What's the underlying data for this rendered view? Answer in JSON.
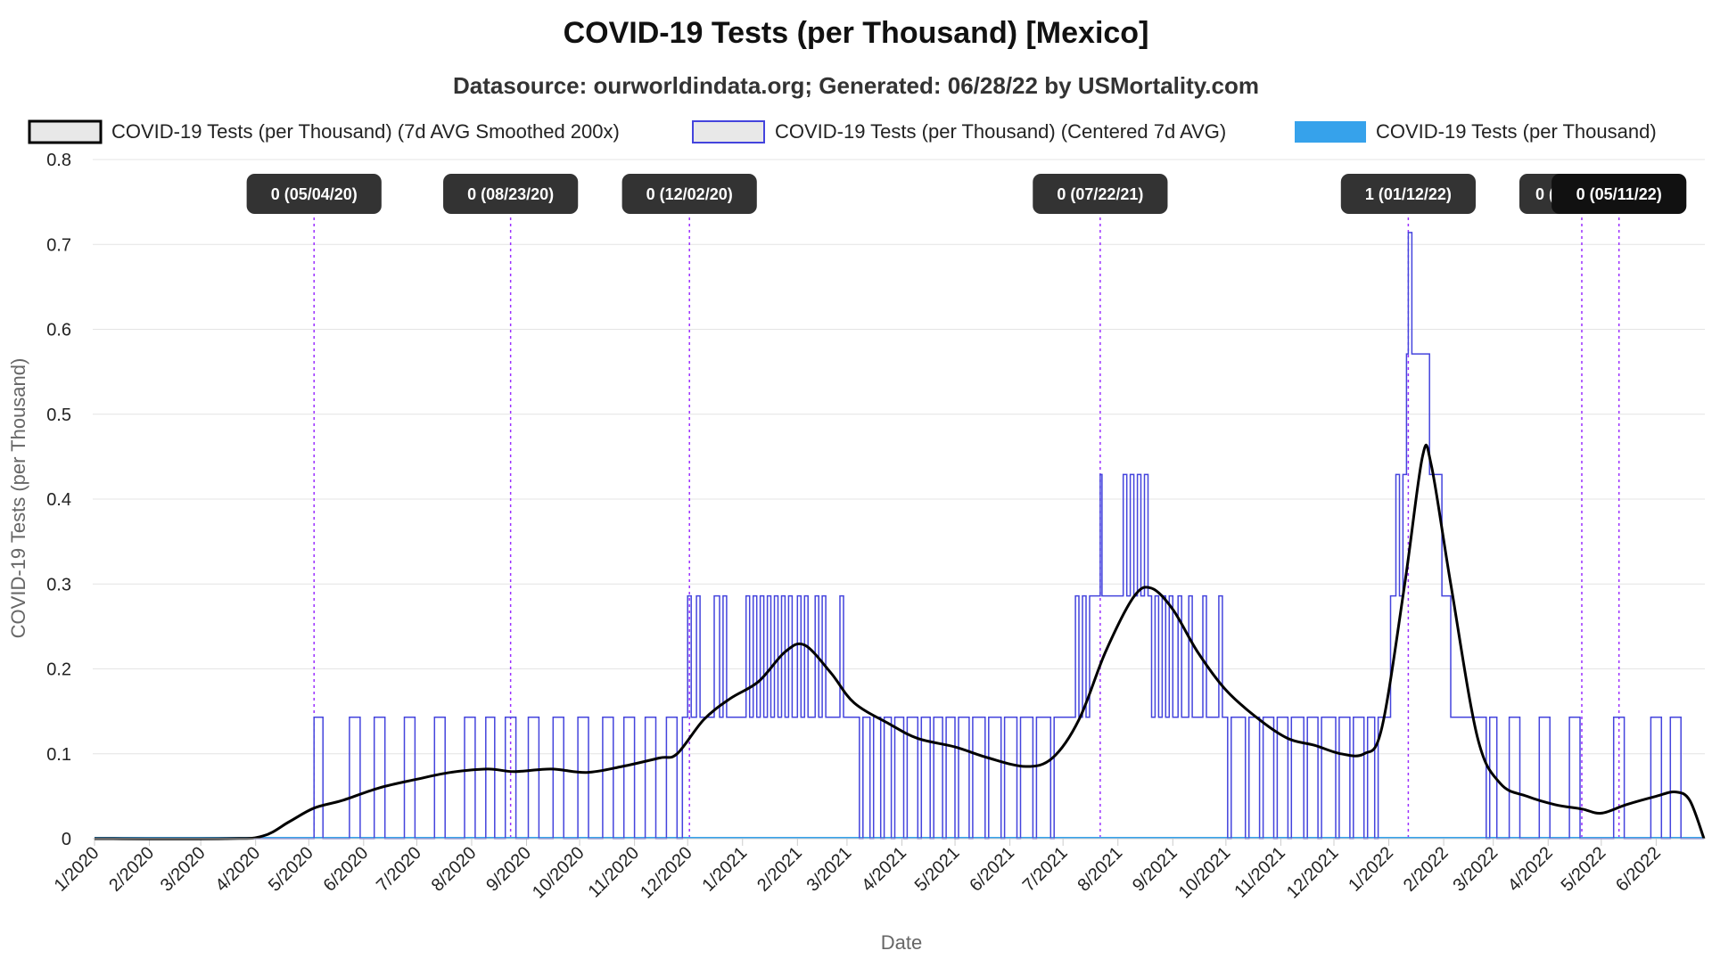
{
  "chart_data": {
    "type": "line",
    "title": "COVID-19 Tests (per Thousand) [Mexico]",
    "subtitle": "Datasource: ourworldindata.org; Generated: 06/28/22 by USMortality.com",
    "xlabel": "Date",
    "ylabel": "COVID-19 Tests (per Thousand)",
    "ylim": [
      0,
      0.8
    ],
    "yticks": [
      "0",
      "0.1",
      "0.2",
      "0.3",
      "0.4",
      "0.5",
      "0.6",
      "0.7",
      "0.8"
    ],
    "xticks": [
      "1/2020",
      "2/2020",
      "3/2020",
      "4/2020",
      "5/2020",
      "6/2020",
      "7/2020",
      "8/2020",
      "9/2020",
      "10/2020",
      "11/2020",
      "12/2020",
      "1/2021",
      "2/2021",
      "3/2021",
      "4/2021",
      "5/2021",
      "6/2021",
      "7/2021",
      "8/2021",
      "9/2021",
      "10/2021",
      "11/2021",
      "12/2021",
      "1/2022",
      "2/2022",
      "3/2022",
      "4/2022",
      "5/2022",
      "6/2022"
    ],
    "grid": true,
    "legend_position": "top",
    "series": [
      {
        "name": "COVID-19 Tests (per Thousand) (7d AVG Smoothed 200x)",
        "style": "smooth",
        "color": "#000000",
        "points": [
          [
            "2020-01-01",
            0
          ],
          [
            "2020-03-15",
            0
          ],
          [
            "2020-04-05",
            0.003
          ],
          [
            "2020-04-20",
            0.02
          ],
          [
            "2020-05-04",
            0.036
          ],
          [
            "2020-05-20",
            0.045
          ],
          [
            "2020-06-10",
            0.06
          ],
          [
            "2020-07-01",
            0.07
          ],
          [
            "2020-07-20",
            0.078
          ],
          [
            "2020-08-10",
            0.082
          ],
          [
            "2020-08-25",
            0.079
          ],
          [
            "2020-09-15",
            0.082
          ],
          [
            "2020-10-05",
            0.078
          ],
          [
            "2020-10-25",
            0.085
          ],
          [
            "2020-11-15",
            0.095
          ],
          [
            "2020-11-25",
            0.1
          ],
          [
            "2020-12-10",
            0.14
          ],
          [
            "2020-12-25",
            0.165
          ],
          [
            "2021-01-10",
            0.185
          ],
          [
            "2021-01-25",
            0.22
          ],
          [
            "2021-02-05",
            0.228
          ],
          [
            "2021-02-20",
            0.195
          ],
          [
            "2021-03-05",
            0.16
          ],
          [
            "2021-03-25",
            0.135
          ],
          [
            "2021-04-10",
            0.118
          ],
          [
            "2021-05-01",
            0.108
          ],
          [
            "2021-05-20",
            0.095
          ],
          [
            "2021-06-10",
            0.085
          ],
          [
            "2021-06-25",
            0.095
          ],
          [
            "2021-07-10",
            0.14
          ],
          [
            "2021-07-25",
            0.22
          ],
          [
            "2021-08-10",
            0.285
          ],
          [
            "2021-08-20",
            0.295
          ],
          [
            "2021-09-01",
            0.27
          ],
          [
            "2021-09-15",
            0.22
          ],
          [
            "2021-10-01",
            0.175
          ],
          [
            "2021-10-20",
            0.14
          ],
          [
            "2021-11-05",
            0.118
          ],
          [
            "2021-11-20",
            0.11
          ],
          [
            "2021-12-05",
            0.1
          ],
          [
            "2021-12-18",
            0.1
          ],
          [
            "2021-12-28",
            0.13
          ],
          [
            "2022-01-10",
            0.3
          ],
          [
            "2022-01-20",
            0.45
          ],
          [
            "2022-01-25",
            0.44
          ],
          [
            "2022-02-05",
            0.3
          ],
          [
            "2022-02-20",
            0.12
          ],
          [
            "2022-03-05",
            0.065
          ],
          [
            "2022-03-20",
            0.05
          ],
          [
            "2022-04-05",
            0.04
          ],
          [
            "2022-04-20",
            0.035
          ],
          [
            "2022-05-01",
            0.03
          ],
          [
            "2022-05-15",
            0.04
          ],
          [
            "2022-06-01",
            0.05
          ],
          [
            "2022-06-12",
            0.055
          ],
          [
            "2022-06-20",
            0.045
          ],
          [
            "2022-06-28",
            0
          ]
        ]
      },
      {
        "name": "COVID-19 Tests (per Thousand) (Centered 7d AVG)",
        "style": "step",
        "color": "#4444dd",
        "levels": [
          0,
          0.143,
          0.286,
          0.429,
          0.571,
          0.714
        ],
        "points": [
          [
            "2020-01-01",
            0
          ],
          [
            "2020-05-04",
            0.143
          ],
          [
            "2020-05-09",
            0
          ],
          [
            "2020-05-24",
            0.143
          ],
          [
            "2020-05-30",
            0
          ],
          [
            "2020-06-07",
            0.143
          ],
          [
            "2020-06-13",
            0
          ],
          [
            "2020-06-24",
            0.143
          ],
          [
            "2020-06-30",
            0
          ],
          [
            "2020-07-11",
            0.143
          ],
          [
            "2020-07-17",
            0
          ],
          [
            "2020-07-28",
            0.143
          ],
          [
            "2020-08-03",
            0
          ],
          [
            "2020-08-09",
            0.143
          ],
          [
            "2020-08-14",
            0
          ],
          [
            "2020-08-20",
            0.143
          ],
          [
            "2020-08-26",
            0
          ],
          [
            "2020-09-02",
            0.143
          ],
          [
            "2020-09-08",
            0
          ],
          [
            "2020-09-16",
            0.143
          ],
          [
            "2020-09-22",
            0
          ],
          [
            "2020-09-30",
            0.143
          ],
          [
            "2020-10-06",
            0
          ],
          [
            "2020-10-14",
            0.143
          ],
          [
            "2020-10-20",
            0
          ],
          [
            "2020-10-26",
            0.143
          ],
          [
            "2020-11-01",
            0
          ],
          [
            "2020-11-07",
            0.143
          ],
          [
            "2020-11-13",
            0
          ],
          [
            "2020-11-19",
            0.143
          ],
          [
            "2020-11-25",
            0
          ],
          [
            "2020-11-28",
            0.143
          ],
          [
            "2020-12-01",
            0.286
          ],
          [
            "2020-12-03",
            0.143
          ],
          [
            "2020-12-06",
            0.286
          ],
          [
            "2020-12-08",
            0.143
          ],
          [
            "2020-12-16",
            0.286
          ],
          [
            "2020-12-19",
            0.143
          ],
          [
            "2020-12-21",
            0.286
          ],
          [
            "2020-12-23",
            0.143
          ],
          [
            "2021-01-03",
            0.286
          ],
          [
            "2021-01-05",
            0.143
          ],
          [
            "2021-01-07",
            0.286
          ],
          [
            "2021-01-09",
            0.143
          ],
          [
            "2021-01-11",
            0.286
          ],
          [
            "2021-01-13",
            0.143
          ],
          [
            "2021-01-15",
            0.286
          ],
          [
            "2021-01-17",
            0.143
          ],
          [
            "2021-01-19",
            0.286
          ],
          [
            "2021-01-21",
            0.143
          ],
          [
            "2021-01-23",
            0.286
          ],
          [
            "2021-01-25",
            0.143
          ],
          [
            "2021-01-27",
            0.286
          ],
          [
            "2021-01-29",
            0.143
          ],
          [
            "2021-02-01",
            0.286
          ],
          [
            "2021-02-03",
            0.143
          ],
          [
            "2021-02-05",
            0.286
          ],
          [
            "2021-02-07",
            0.143
          ],
          [
            "2021-02-11",
            0.286
          ],
          [
            "2021-02-13",
            0.143
          ],
          [
            "2021-02-15",
            0.286
          ],
          [
            "2021-02-17",
            0.143
          ],
          [
            "2021-02-25",
            0.286
          ],
          [
            "2021-02-27",
            0.143
          ],
          [
            "2021-03-08",
            0
          ],
          [
            "2021-03-10",
            0.143
          ],
          [
            "2021-03-14",
            0
          ],
          [
            "2021-03-16",
            0.143
          ],
          [
            "2021-03-20",
            0
          ],
          [
            "2021-03-22",
            0.143
          ],
          [
            "2021-03-26",
            0
          ],
          [
            "2021-03-28",
            0.143
          ],
          [
            "2021-04-02",
            0
          ],
          [
            "2021-04-04",
            0.143
          ],
          [
            "2021-04-10",
            0
          ],
          [
            "2021-04-12",
            0.143
          ],
          [
            "2021-04-17",
            0
          ],
          [
            "2021-04-19",
            0.143
          ],
          [
            "2021-04-24",
            0
          ],
          [
            "2021-04-26",
            0.143
          ],
          [
            "2021-05-01",
            0
          ],
          [
            "2021-05-03",
            0.143
          ],
          [
            "2021-05-09",
            0
          ],
          [
            "2021-05-11",
            0.143
          ],
          [
            "2021-05-18",
            0
          ],
          [
            "2021-05-20",
            0.143
          ],
          [
            "2021-05-27",
            0
          ],
          [
            "2021-05-29",
            0.143
          ],
          [
            "2021-06-05",
            0
          ],
          [
            "2021-06-07",
            0.143
          ],
          [
            "2021-06-14",
            0
          ],
          [
            "2021-06-16",
            0.143
          ],
          [
            "2021-06-24",
            0
          ],
          [
            "2021-06-26",
            0.143
          ],
          [
            "2021-07-04",
            0.143
          ],
          [
            "2021-07-08",
            0.286
          ],
          [
            "2021-07-10",
            0.143
          ],
          [
            "2021-07-12",
            0.286
          ],
          [
            "2021-07-14",
            0.143
          ],
          [
            "2021-07-16",
            0.286
          ],
          [
            "2021-07-22",
            0.429
          ],
          [
            "2021-07-23",
            0.286
          ],
          [
            "2021-08-04",
            0.429
          ],
          [
            "2021-08-06",
            0.286
          ],
          [
            "2021-08-08",
            0.429
          ],
          [
            "2021-08-10",
            0.286
          ],
          [
            "2021-08-12",
            0.429
          ],
          [
            "2021-08-14",
            0.286
          ],
          [
            "2021-08-16",
            0.429
          ],
          [
            "2021-08-18",
            0.286
          ],
          [
            "2021-08-20",
            0.143
          ],
          [
            "2021-08-22",
            0.286
          ],
          [
            "2021-08-24",
            0.143
          ],
          [
            "2021-08-26",
            0.286
          ],
          [
            "2021-08-28",
            0.143
          ],
          [
            "2021-08-30",
            0.286
          ],
          [
            "2021-09-01",
            0.143
          ],
          [
            "2021-09-04",
            0.286
          ],
          [
            "2021-09-06",
            0.143
          ],
          [
            "2021-09-10",
            0.286
          ],
          [
            "2021-09-12",
            0.143
          ],
          [
            "2021-09-18",
            0.286
          ],
          [
            "2021-09-20",
            0.143
          ],
          [
            "2021-09-27",
            0.286
          ],
          [
            "2021-09-29",
            0.143
          ],
          [
            "2021-10-02",
            0
          ],
          [
            "2021-10-04",
            0.143
          ],
          [
            "2021-10-12",
            0
          ],
          [
            "2021-10-14",
            0.143
          ],
          [
            "2021-10-20",
            0
          ],
          [
            "2021-10-22",
            0.143
          ],
          [
            "2021-10-28",
            0
          ],
          [
            "2021-10-30",
            0.143
          ],
          [
            "2021-11-05",
            0
          ],
          [
            "2021-11-07",
            0.143
          ],
          [
            "2021-11-14",
            0
          ],
          [
            "2021-11-16",
            0.143
          ],
          [
            "2021-11-22",
            0
          ],
          [
            "2021-11-24",
            0.143
          ],
          [
            "2021-12-02",
            0
          ],
          [
            "2021-12-04",
            0.143
          ],
          [
            "2021-12-10",
            0
          ],
          [
            "2021-12-12",
            0.143
          ],
          [
            "2021-12-18",
            0
          ],
          [
            "2021-12-20",
            0.143
          ],
          [
            "2021-12-24",
            0
          ],
          [
            "2021-12-26",
            0.143
          ],
          [
            "2022-01-02",
            0.286
          ],
          [
            "2022-01-05",
            0.429
          ],
          [
            "2022-01-07",
            0.286
          ],
          [
            "2022-01-09",
            0.429
          ],
          [
            "2022-01-11",
            0.571
          ],
          [
            "2022-01-12",
            0.714
          ],
          [
            "2022-01-14",
            0.571
          ],
          [
            "2022-01-24",
            0.429
          ],
          [
            "2022-01-31",
            0.286
          ],
          [
            "2022-02-05",
            0.143
          ],
          [
            "2022-02-25",
            0
          ],
          [
            "2022-02-27",
            0.143
          ],
          [
            "2022-03-03",
            0
          ],
          [
            "2022-03-10",
            0.143
          ],
          [
            "2022-03-16",
            0
          ],
          [
            "2022-03-27",
            0.143
          ],
          [
            "2022-04-02",
            0
          ],
          [
            "2022-04-13",
            0.143
          ],
          [
            "2022-04-19",
            0
          ],
          [
            "2022-05-08",
            0.143
          ],
          [
            "2022-05-14",
            0
          ],
          [
            "2022-05-29",
            0.143
          ],
          [
            "2022-06-04",
            0
          ],
          [
            "2022-06-09",
            0.143
          ],
          [
            "2022-06-15",
            0
          ],
          [
            "2022-06-28",
            0
          ]
        ]
      },
      {
        "name": "COVID-19 Tests (per Thousand)",
        "style": "bar",
        "color": "#36a2eb",
        "note_value": 0
      }
    ],
    "annotations": [
      {
        "date": "2020-05-04",
        "text": "0 (05/04/20)"
      },
      {
        "date": "2020-08-23",
        "text": "0 (08/23/20)"
      },
      {
        "date": "2020-12-02",
        "text": "0 (12/02/20)"
      },
      {
        "date": "2021-07-22",
        "text": "0 (07/22/21)"
      },
      {
        "date": "2022-01-12",
        "text": "1 (01/12/22)"
      },
      {
        "date": "2022-04-20",
        "text": "0 (04"
      },
      {
        "date": "2022-05-11",
        "text": "0 (05/11/22)"
      }
    ]
  }
}
